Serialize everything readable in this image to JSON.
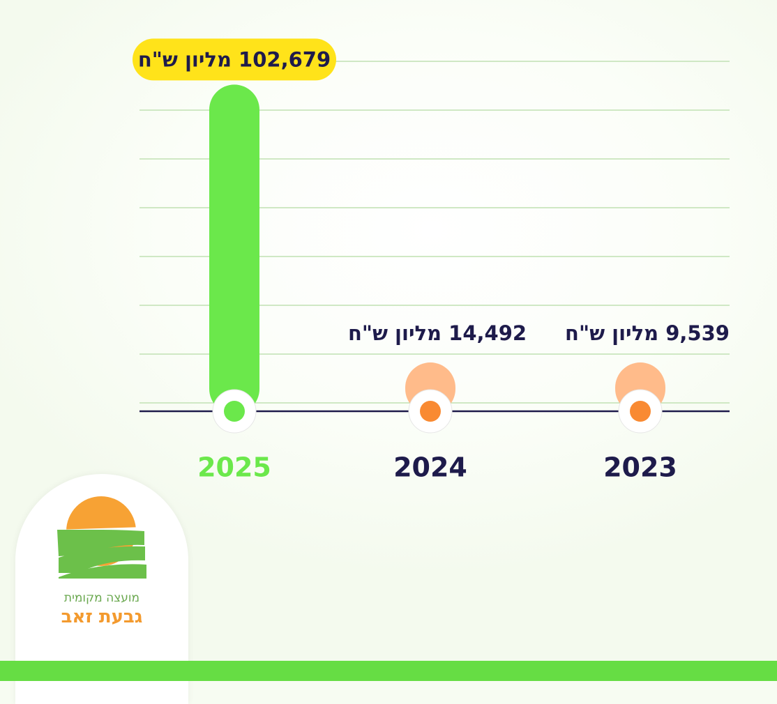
{
  "chart_data": {
    "type": "bar",
    "categories": [
      "2025",
      "2024",
      "2023"
    ],
    "values": [
      102679,
      14492,
      9539
    ],
    "value_labels": [
      "102,679 מליון ש\"ח",
      "14,492 מליון ש\"ח",
      "9,539 מליון ש\"ח"
    ],
    "highlight_index": 0,
    "ylim": [
      0,
      110000
    ],
    "grid": true,
    "title": "",
    "xlabel": "",
    "ylabel": "",
    "colors": {
      "highlight_bar": "#6be84b",
      "highlight_dot": "#6be84b",
      "bar": "#ffbb8a",
      "dot": "#f98a32",
      "highlight_badge": "#ffe31a",
      "highlight_year": "#6be84b",
      "year": "#1e1b4b",
      "baseline": "#1e1b4b",
      "grid": "#cfe8c4"
    }
  },
  "logo": {
    "line1": "מועצה מקומית",
    "line2": "גבעת זאב",
    "icon": "sun-and-fields-logo"
  }
}
